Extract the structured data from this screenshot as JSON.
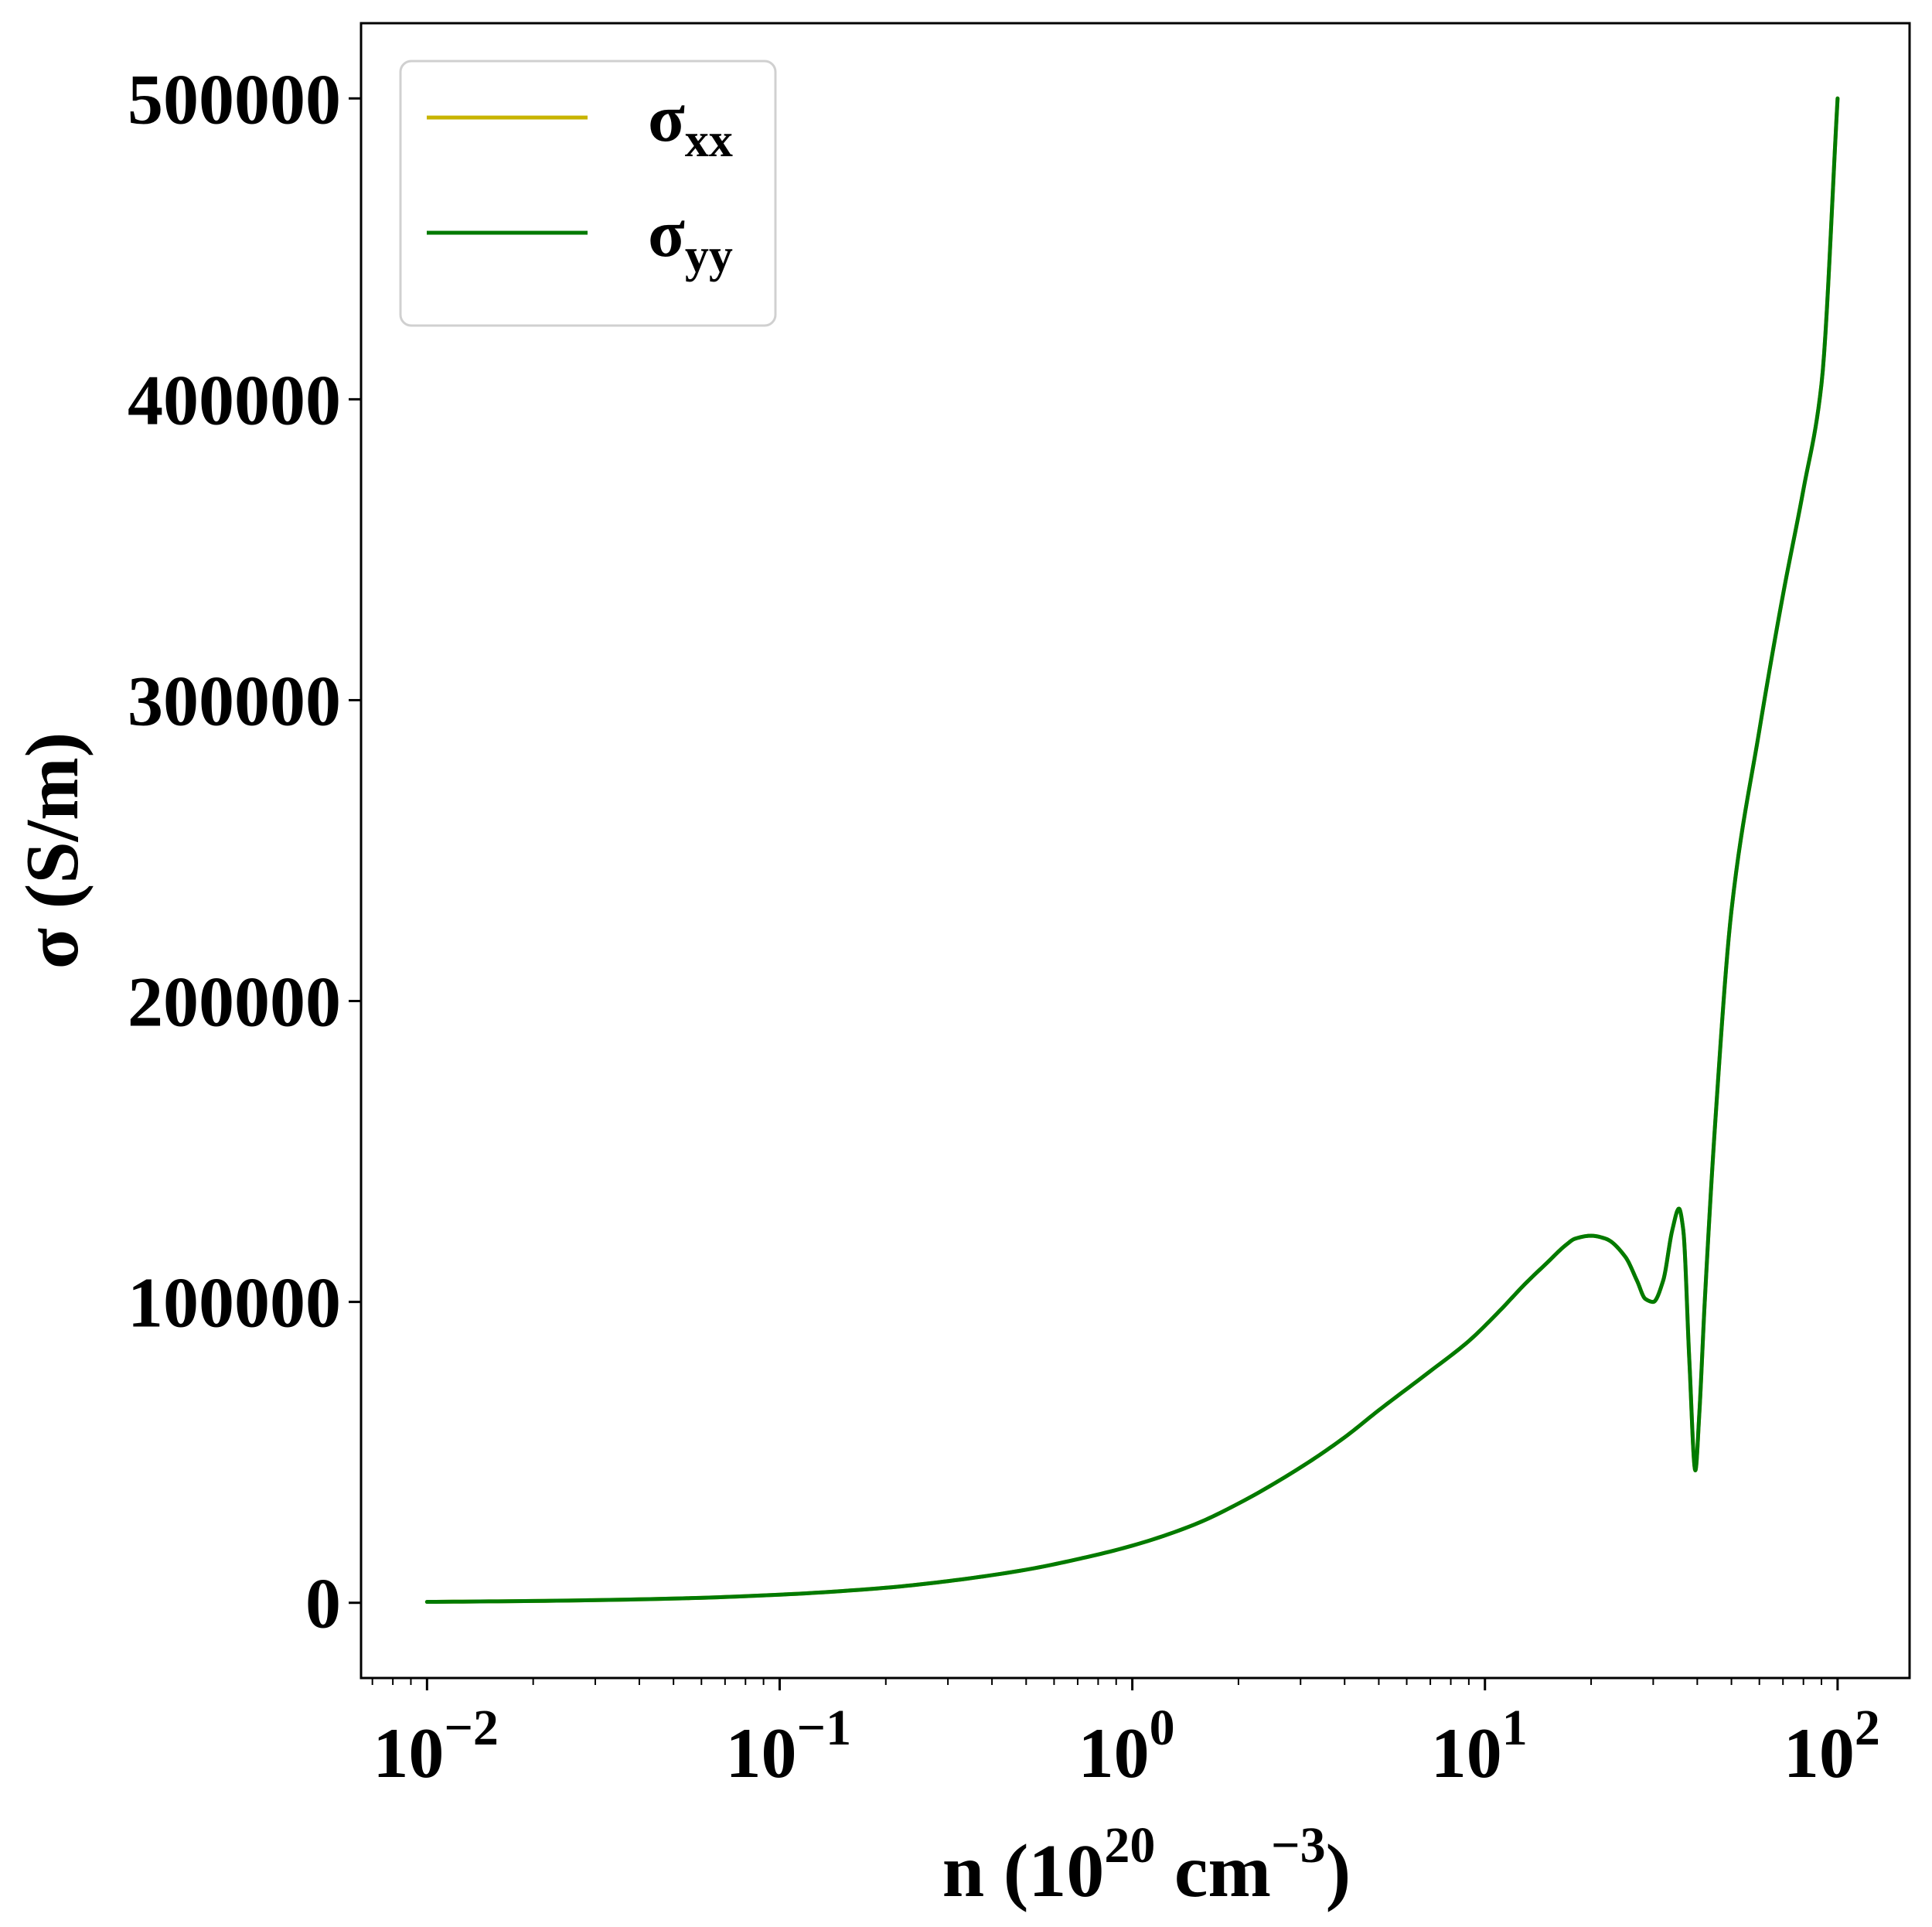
{
  "chart_data": {
    "type": "line",
    "xscale": "log",
    "xlim": [
      0.0065,
      160
    ],
    "ylim": [
      -25000,
      525000
    ],
    "xlabel": {
      "base": "n (10",
      "exp1": "20",
      "mid": " cm",
      "exp2": "−3",
      "end": ")"
    },
    "ylabel": "σ (S/m)",
    "y_ticks": [
      0,
      100000,
      200000,
      300000,
      400000,
      500000
    ],
    "y_tick_labels": [
      "0",
      "100000",
      "200000",
      "300000",
      "400000",
      "500000"
    ],
    "x_ticks": [
      {
        "value": 0.01,
        "base": "10",
        "exp": "−2"
      },
      {
        "value": 0.1,
        "base": "10",
        "exp": "−1"
      },
      {
        "value": 1,
        "base": "10",
        "exp": "0"
      },
      {
        "value": 10,
        "base": "10",
        "exp": "1"
      },
      {
        "value": 100,
        "base": "10",
        "exp": "2"
      }
    ],
    "grid": false,
    "legend_position": "top-left",
    "series": [
      {
        "name_main": "σ",
        "name_sub": "xx",
        "color": "#c8b400",
        "x": [
          0.01,
          0.02,
          0.05,
          0.1,
          0.2,
          0.3,
          0.5,
          0.7,
          1,
          1.5,
          2,
          3,
          4,
          5,
          7,
          9,
          11,
          13,
          15,
          17,
          18,
          20,
          22,
          25,
          27,
          28.5,
          30,
          32,
          34,
          35.5,
          36.5,
          38,
          39.5,
          40.5,
          42,
          45,
          50,
          60,
          70,
          80,
          90,
          100
        ],
        "y": [
          300,
          600,
          1400,
          2700,
          5000,
          7200,
          11000,
          14500,
          19000,
          26000,
          33000,
          45000,
          55000,
          64000,
          77000,
          87000,
          97000,
          106000,
          113000,
          119000,
          121000,
          122000,
          121000,
          115000,
          107000,
          101000,
          100000,
          107000,
          124000,
          131000,
          124000,
          80000,
          44000,
          62000,
          100000,
          160000,
          230000,
          290000,
          335000,
          370000,
          405000,
          500000
        ]
      },
      {
        "name_main": "σ",
        "name_sub": "yy",
        "color": "#007a00",
        "x": [
          0.01,
          0.02,
          0.05,
          0.1,
          0.2,
          0.3,
          0.5,
          0.7,
          1,
          1.5,
          2,
          3,
          4,
          5,
          7,
          9,
          11,
          13,
          15,
          17,
          18,
          20,
          22,
          25,
          27,
          28.5,
          30,
          32,
          34,
          35.5,
          36.5,
          38,
          39.5,
          40.5,
          42,
          45,
          50,
          60,
          70,
          80,
          90,
          100
        ],
        "y": [
          300,
          600,
          1400,
          2700,
          5000,
          7200,
          11000,
          14500,
          19000,
          26000,
          33000,
          45000,
          55000,
          64000,
          77000,
          87000,
          97000,
          106000,
          113000,
          119000,
          121000,
          122000,
          121000,
          115000,
          107000,
          101000,
          100000,
          107000,
          124000,
          131000,
          124000,
          80000,
          44000,
          62000,
          100000,
          160000,
          230000,
          290000,
          335000,
          370000,
          405000,
          500000
        ]
      }
    ]
  }
}
